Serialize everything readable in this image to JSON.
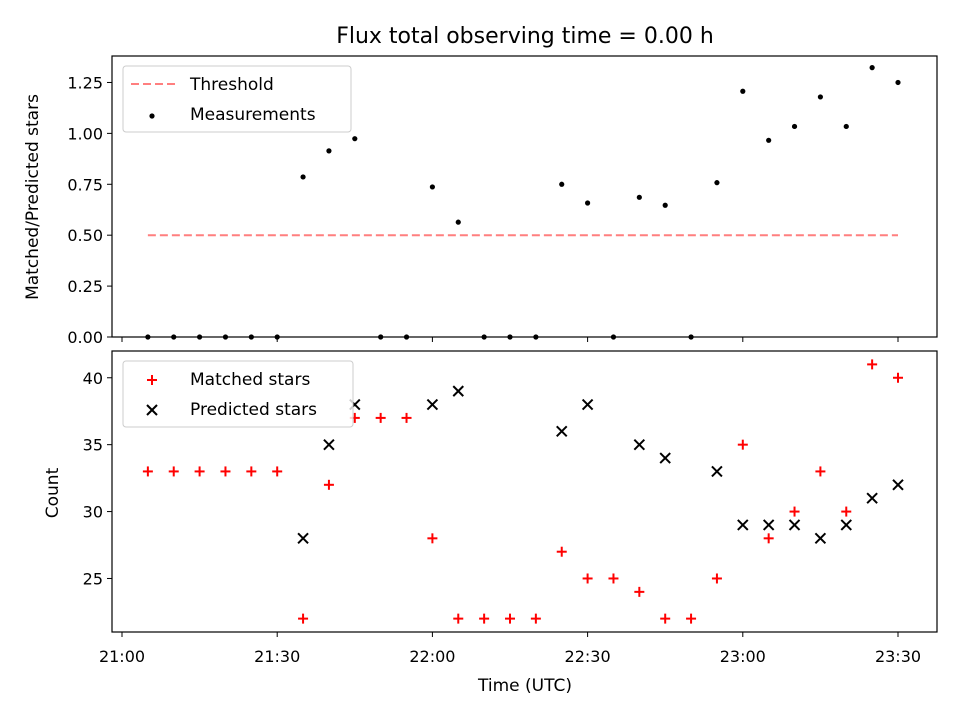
{
  "chart_data": [
    {
      "type": "scatter",
      "title": "Flux total observing time = 0.00 h",
      "xlabel": "",
      "ylabel": "Matched/Predicted stars",
      "ylim": [
        0,
        1.38
      ],
      "yticks": [
        "0.00",
        "0.25",
        "0.50",
        "0.75",
        "1.00",
        "1.25"
      ],
      "ytick_values": [
        0,
        0.25,
        0.5,
        0.75,
        1.0,
        1.25
      ],
      "legend_position": "top-left",
      "series": [
        {
          "name": "Threshold",
          "style": "dashed-line",
          "color": "#ff7f7f",
          "x": [
            "21:05",
            "23:30"
          ],
          "y": [
            0.5,
            0.5
          ]
        },
        {
          "name": "Measurements",
          "style": "dot",
          "color": "#000000",
          "x": [
            "21:05",
            "21:10",
            "21:15",
            "21:20",
            "21:25",
            "21:30",
            "21:35",
            "21:40",
            "21:45",
            "21:50",
            "21:55",
            "22:00",
            "22:05",
            "22:10",
            "22:15",
            "22:20",
            "22:25",
            "22:30",
            "22:35",
            "22:40",
            "22:45",
            "22:50",
            "22:55",
            "23:00",
            "23:05",
            "23:10",
            "23:15",
            "23:20",
            "23:25",
            "23:30"
          ],
          "y": [
            0,
            0,
            0,
            0,
            0,
            0,
            0.786,
            0.914,
            0.974,
            0,
            0,
            0.737,
            0.564,
            0,
            0,
            0,
            0.75,
            0.658,
            0,
            0.686,
            0.647,
            0,
            0.758,
            1.207,
            0.966,
            1.034,
            1.179,
            1.034,
            1.323,
            1.25
          ]
        }
      ]
    },
    {
      "type": "scatter",
      "title": "",
      "xlabel": "Time (UTC)",
      "ylabel": "Count",
      "ylim": [
        21,
        42
      ],
      "yticks": [
        "25",
        "30",
        "35",
        "40"
      ],
      "ytick_values": [
        25,
        30,
        35,
        40
      ],
      "xticks": [
        "21:00",
        "21:30",
        "22:00",
        "22:30",
        "23:00",
        "23:30"
      ],
      "legend_position": "top-left",
      "series": [
        {
          "name": "Matched stars",
          "style": "plus",
          "color": "#ff0000",
          "x": [
            "21:05",
            "21:10",
            "21:15",
            "21:20",
            "21:25",
            "21:30",
            "21:35",
            "21:40",
            "21:45",
            "21:50",
            "21:55",
            "22:00",
            "22:05",
            "22:10",
            "22:15",
            "22:20",
            "22:25",
            "22:30",
            "22:35",
            "22:40",
            "22:45",
            "22:50",
            "22:55",
            "23:00",
            "23:05",
            "23:10",
            "23:15",
            "23:20",
            "23:25",
            "23:30"
          ],
          "y": [
            33,
            33,
            33,
            33,
            33,
            33,
            22,
            32,
            37,
            37,
            37,
            28,
            22,
            22,
            22,
            22,
            27,
            25,
            25,
            24,
            22,
            22,
            25,
            35,
            28,
            30,
            33,
            30,
            41,
            40
          ]
        },
        {
          "name": "Predicted stars",
          "style": "x",
          "color": "#000000",
          "x": [
            "21:35",
            "21:40",
            "21:45",
            "22:00",
            "22:05",
            "22:25",
            "22:30",
            "22:40",
            "22:45",
            "22:55",
            "23:00",
            "23:05",
            "23:10",
            "23:15",
            "23:20",
            "23:25",
            "23:30"
          ],
          "y": [
            28,
            35,
            38,
            38,
            39,
            36,
            38,
            35,
            34,
            33,
            29,
            29,
            29,
            28,
            29,
            31,
            32
          ]
        }
      ]
    }
  ]
}
